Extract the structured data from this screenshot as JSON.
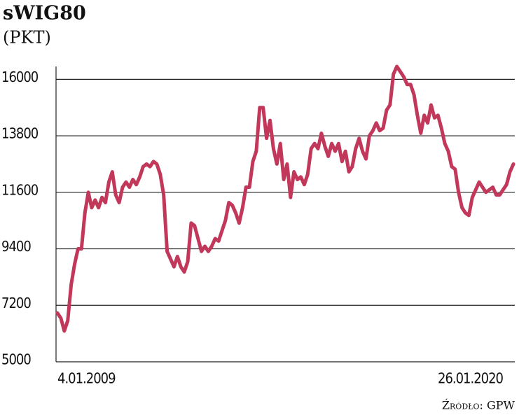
{
  "chart_data": {
    "type": "line",
    "title": "sWIG80",
    "subtitle": "(PKT)",
    "source": "Źródło: GPW",
    "color": "#c2385b",
    "categories": [
      "4.01.2009",
      null,
      null,
      null,
      null,
      null,
      null,
      null,
      null,
      null,
      null,
      null,
      null,
      null,
      null,
      null,
      null,
      null,
      null,
      null,
      null,
      null,
      null,
      null,
      null,
      null,
      null,
      null,
      null,
      null,
      null,
      null,
      null,
      null,
      null,
      null,
      null,
      null,
      null,
      null,
      null,
      null,
      null,
      null,
      null,
      null,
      null,
      null,
      null,
      null,
      null,
      null,
      null,
      null,
      null,
      null,
      null,
      null,
      null,
      null,
      null,
      null,
      null,
      null,
      null,
      null,
      null,
      null,
      null,
      null,
      null,
      null,
      null,
      null,
      null,
      null,
      null,
      null,
      null,
      null,
      null,
      null,
      null,
      null,
      null,
      null,
      null,
      null,
      null,
      null,
      null,
      null,
      null,
      null,
      null,
      null,
      null,
      null,
      null,
      null,
      null,
      null,
      null,
      null,
      null,
      null,
      null,
      null,
      null,
      null,
      null,
      null,
      null,
      null,
      null,
      null,
      null,
      null,
      null,
      null,
      null,
      null,
      null,
      null,
      null,
      null,
      null,
      null,
      null,
      null,
      null,
      null,
      null,
      "26.01.2020"
    ],
    "values": [
      6900,
      6700,
      6200,
      6600,
      8000,
      8800,
      9400,
      9400,
      10800,
      11600,
      11000,
      11300,
      11000,
      11400,
      11200,
      12000,
      12400,
      11500,
      11200,
      11800,
      12000,
      11800,
      12100,
      11900,
      12200,
      12600,
      12700,
      12600,
      12800,
      12700,
      12300,
      11500,
      9300,
      9000,
      8700,
      9100,
      8700,
      8500,
      8900,
      10400,
      10300,
      9800,
      9300,
      9500,
      9300,
      9500,
      9800,
      9700,
      10100,
      10500,
      11200,
      11100,
      10800,
      10400,
      11000,
      11800,
      11800,
      12800,
      13200,
      14900,
      14900,
      13700,
      14400,
      13300,
      12700,
      13500,
      12100,
      12700,
      11400,
      12400,
      12100,
      12200,
      11900,
      12300,
      13300,
      13500,
      13300,
      13900,
      13400,
      13000,
      13500,
      13200,
      13500,
      12800,
      13200,
      12400,
      12600,
      13300,
      13700,
      13200,
      12900,
      13800,
      14000,
      14300,
      14000,
      14100,
      14800,
      15000,
      16200,
      16500,
      16300,
      16100,
      15800,
      15800,
      15400,
      14600,
      13900,
      14600,
      14300,
      15000,
      14500,
      14600,
      14100,
      13500,
      13200,
      12600,
      12500,
      11600,
      11000,
      10800,
      10700,
      11400,
      11700,
      12000,
      11800,
      11600,
      11700,
      11800,
      11500,
      11500,
      11700,
      11900,
      12400,
      12700
    ],
    "ylim": [
      5000,
      16500
    ],
    "yticks": [
      5000,
      7200,
      9400,
      11600,
      13800,
      16000
    ],
    "grid": true
  }
}
